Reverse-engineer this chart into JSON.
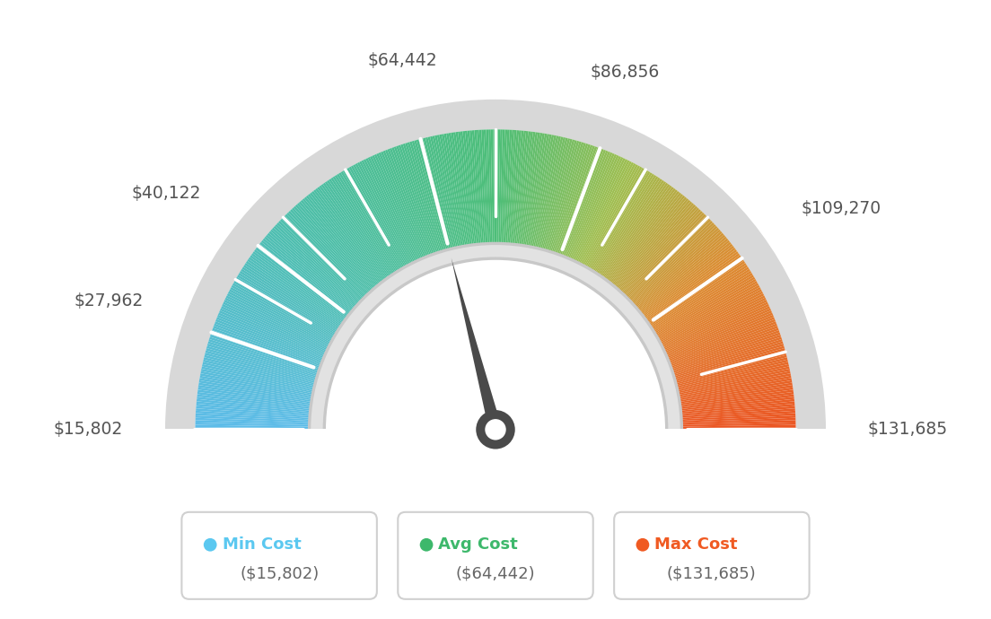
{
  "min_val": 15802,
  "avg_val": 64442,
  "max_val": 131685,
  "labels": [
    "$15,802",
    "$27,962",
    "$40,122",
    "$64,442",
    "$86,856",
    "$109,270",
    "$131,685"
  ],
  "label_values": [
    15802,
    27962,
    40122,
    64442,
    86856,
    109270,
    131685
  ],
  "legend_labels": [
    "Min Cost",
    "Avg Cost",
    "Max Cost"
  ],
  "legend_values": [
    "($15,802)",
    "($64,442)",
    "($131,685)"
  ],
  "legend_colors": [
    "#5bc8f0",
    "#3db86b",
    "#f05a22"
  ],
  "color_stops": [
    [
      0.0,
      [
        93,
        188,
        233
      ]
    ],
    [
      0.25,
      [
        77,
        190,
        172
      ]
    ],
    [
      0.5,
      [
        77,
        190,
        120
      ]
    ],
    [
      0.65,
      [
        160,
        190,
        80
      ]
    ],
    [
      0.8,
      [
        220,
        140,
        50
      ]
    ],
    [
      1.0,
      [
        235,
        85,
        35
      ]
    ]
  ],
  "outer_r": 1.0,
  "inner_r": 0.58,
  "ring_r": 1.1
}
